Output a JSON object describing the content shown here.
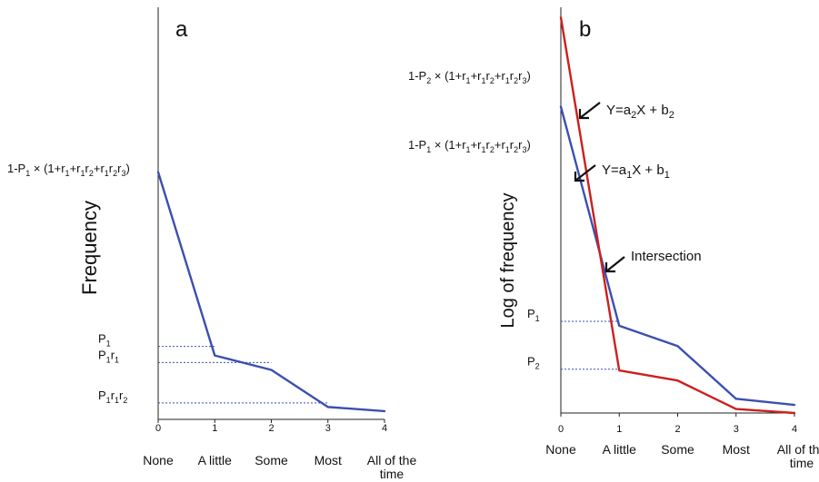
{
  "chart_data": [
    {
      "type": "line",
      "panel_letter": "a",
      "ylabel": "Frequency",
      "x": [
        0,
        1,
        2,
        3,
        4
      ],
      "categories": [
        "None",
        "A little",
        "Some",
        "Most",
        "All of the time"
      ],
      "xlim": [
        0,
        4
      ],
      "ylim": [
        0,
        1
      ],
      "series": [
        {
          "color": "#3b4fb0",
          "values": [
            0.6,
            0.155,
            0.12,
            0.03,
            0.02
          ]
        }
      ],
      "intercept_label": {
        "base": "1-P",
        "sub": "1",
        "rest": "×(1+r",
        "terms": [
          "1",
          "+r",
          "1",
          "r",
          "2",
          "+r",
          "1",
          "r",
          "2",
          "r",
          "3",
          ")"
        ]
      },
      "level_labels": [
        {
          "parts": [
            {
              "t": "P"
            },
            {
              "s": "1"
            }
          ],
          "y": 0.177,
          "x_end": 1
        },
        {
          "parts": [
            {
              "t": "P"
            },
            {
              "s": "1"
            },
            {
              "t": "r"
            },
            {
              "s": "1"
            }
          ],
          "y": 0.138,
          "x_end": 2
        },
        {
          "parts": [
            {
              "t": "P"
            },
            {
              "s": "1"
            },
            {
              "t": "r"
            },
            {
              "s": "1"
            },
            {
              "t": "r"
            },
            {
              "s": "2"
            }
          ],
          "y": 0.04,
          "x_end": 3
        }
      ]
    },
    {
      "type": "line",
      "panel_letter": "b",
      "ylabel": "Log of frequency",
      "x": [
        0,
        1,
        2,
        3,
        4
      ],
      "categories": [
        "None",
        "A little",
        "Some",
        "Most",
        "All of the time"
      ],
      "xlim": [
        0,
        4
      ],
      "ylim": [
        0,
        1
      ],
      "series": [
        {
          "color": "#3b4fb0",
          "values": [
            0.755,
            0.215,
            0.165,
            0.035,
            0.02
          ]
        },
        {
          "color": "#cc1f1f",
          "values": [
            0.975,
            0.105,
            0.08,
            0.01,
            0.0
          ]
        }
      ],
      "level_labels": [
        {
          "parts": [
            {
              "t": "P"
            },
            {
              "s": "1"
            }
          ],
          "y": 0.226,
          "x_end": 1
        },
        {
          "parts": [
            {
              "t": "P"
            },
            {
              "s": "2"
            }
          ],
          "y": 0.108,
          "x_end": 1
        }
      ],
      "annotations": [
        {
          "id": "eq2",
          "parts": [
            {
              "t": "Y=a"
            },
            {
              "s": "2"
            },
            {
              "t": "X + b"
            },
            {
              "s": "2"
            }
          ]
        },
        {
          "id": "eq1",
          "parts": [
            {
              "t": "Y=a"
            },
            {
              "s": "1"
            },
            {
              "t": "X + b"
            },
            {
              "s": "1"
            }
          ]
        },
        {
          "id": "intersection",
          "parts": [
            {
              "t": "Intersection"
            }
          ]
        }
      ],
      "top_formulas": [
        {
          "id": "formula2",
          "sub_p": "2"
        },
        {
          "id": "formula1",
          "sub_p": "1"
        }
      ]
    }
  ]
}
